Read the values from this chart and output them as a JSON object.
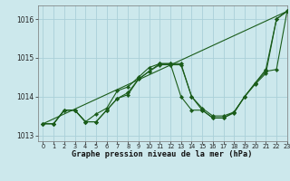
{
  "title": "",
  "xlabel": "Graphe pression niveau de la mer (hPa)",
  "xlim": [
    -0.5,
    23
  ],
  "ylim": [
    1012.85,
    1016.35
  ],
  "yticks": [
    1013,
    1014,
    1015,
    1016
  ],
  "xticks": [
    0,
    1,
    2,
    3,
    4,
    5,
    6,
    7,
    8,
    9,
    10,
    11,
    12,
    13,
    14,
    15,
    16,
    17,
    18,
    19,
    20,
    21,
    22,
    23
  ],
  "background_color": "#cce8ec",
  "grid_color": "#aad0d8",
  "line_color": "#1a5c1a",
  "lines": [
    {
      "x": [
        0,
        1,
        2,
        3,
        4,
        5,
        6,
        7,
        8,
        9,
        10,
        11,
        12,
        13,
        14,
        15,
        16,
        17,
        18,
        19,
        20,
        21,
        22,
        23
      ],
      "y": [
        1013.3,
        1013.3,
        1013.65,
        1013.65,
        1013.35,
        1013.35,
        1013.65,
        1013.95,
        1014.1,
        1014.45,
        1014.65,
        1014.85,
        1014.85,
        1014.85,
        1014.0,
        1013.7,
        1013.5,
        1013.5,
        1013.6,
        1014.0,
        1014.35,
        1014.7,
        1016.0,
        1016.2
      ],
      "markers": true
    },
    {
      "x": [
        0,
        1,
        2,
        3,
        4,
        5,
        6,
        7,
        8,
        9,
        10,
        11,
        12,
        13,
        14,
        15,
        16,
        17,
        18,
        19,
        20,
        21,
        22,
        23
      ],
      "y": [
        1013.3,
        1013.3,
        1013.65,
        1013.65,
        1013.35,
        1013.55,
        1013.7,
        1014.15,
        1014.25,
        1014.5,
        1014.75,
        1014.85,
        1014.85,
        1014.0,
        1013.65,
        1013.65,
        1013.45,
        1013.45,
        1013.6,
        1014.0,
        1014.35,
        1014.65,
        1014.7,
        1016.2
      ],
      "markers": true
    },
    {
      "x": [
        0,
        1,
        2,
        3,
        4,
        5,
        6,
        7,
        8,
        9,
        10,
        11,
        12,
        13,
        14,
        15,
        16,
        17,
        18,
        19,
        20,
        21,
        22,
        23
      ],
      "y": [
        1013.3,
        1013.3,
        1013.65,
        1013.65,
        1013.35,
        1013.35,
        1013.65,
        1013.95,
        1014.05,
        1014.45,
        1014.65,
        1014.82,
        1014.82,
        1014.82,
        1014.0,
        1013.65,
        1013.45,
        1013.45,
        1013.58,
        1014.0,
        1014.32,
        1014.6,
        1016.0,
        1016.2
      ],
      "markers": true
    },
    {
      "x": [
        0,
        23
      ],
      "y": [
        1013.3,
        1016.2
      ],
      "markers": false
    }
  ]
}
